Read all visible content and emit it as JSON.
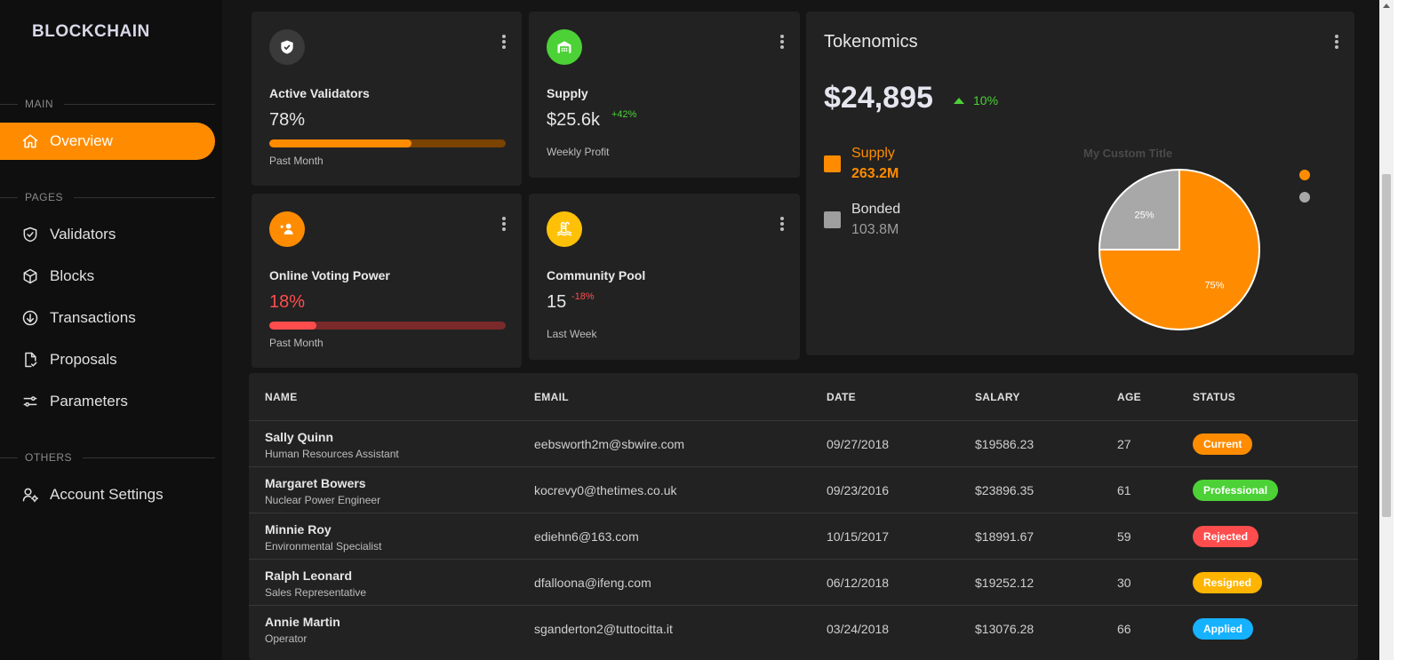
{
  "sidebar": {
    "brand": "BLOCKCHAIN",
    "sections": {
      "main": "MAIN",
      "pages": "PAGES",
      "others": "OTHERS"
    },
    "items": {
      "overview": "Overview",
      "validators": "Validators",
      "blocks": "Blocks",
      "transactions": "Transactions",
      "proposals": "Proposals",
      "parameters": "Parameters",
      "account_settings": "Account Settings"
    }
  },
  "cards": {
    "active_validators": {
      "title": "Active Validators",
      "value": "78%",
      "progress": 0.6,
      "sub": "Past Month",
      "color": "#ff8c00"
    },
    "supply": {
      "title": "Supply",
      "value": "$25.6k",
      "delta": "+42%",
      "sub": "Weekly Profit",
      "color": "#4cd137"
    },
    "online_voting_power": {
      "title": "Online Voting Power",
      "value": "18%",
      "progress": 0.2,
      "sub": "Past Month",
      "color": "#ff4d4d"
    },
    "community_pool": {
      "title": "Community Pool",
      "value": "15",
      "delta": "-18%",
      "sub": "Last Week",
      "color": "#ffc107"
    }
  },
  "tokenomics": {
    "title": "Tokenomics",
    "amount": "$24,895",
    "change": "10%",
    "legend": [
      {
        "label": "Supply",
        "value": "263.2M",
        "color": "#ff8c00"
      },
      {
        "label": "Bonded",
        "value": "103.8M",
        "color": "#9e9e9e"
      }
    ]
  },
  "chart_data": {
    "type": "pie",
    "title": "My Custom Title",
    "slices": [
      {
        "label": "75%",
        "value": 75,
        "color": "#ff8c00"
      },
      {
        "label": "25%",
        "value": 25,
        "color": "#a8a8a8"
      }
    ],
    "legend_position": "right"
  },
  "table": {
    "headers": {
      "name": "NAME",
      "email": "EMAIL",
      "date": "DATE",
      "salary": "SALARY",
      "age": "AGE",
      "status": "STATUS"
    },
    "rows": [
      {
        "name": "Sally Quinn",
        "role": "Human Resources Assistant",
        "email": "eebsworth2m@sbwire.com",
        "date": "09/27/2018",
        "salary": "$19586.23",
        "age": "27",
        "status": "Current",
        "status_color": "#ff8c00"
      },
      {
        "name": "Margaret Bowers",
        "role": "Nuclear Power Engineer",
        "email": "kocrevy0@thetimes.co.uk",
        "date": "09/23/2016",
        "salary": "$23896.35",
        "age": "61",
        "status": "Professional",
        "status_color": "#4cd137"
      },
      {
        "name": "Minnie Roy",
        "role": "Environmental Specialist",
        "email": "ediehn6@163.com",
        "date": "10/15/2017",
        "salary": "$18991.67",
        "age": "59",
        "status": "Rejected",
        "status_color": "#ff4d4d"
      },
      {
        "name": "Ralph Leonard",
        "role": "Sales Representative",
        "email": "dfalloona@ifeng.com",
        "date": "06/12/2018",
        "salary": "$19252.12",
        "age": "30",
        "status": "Resigned",
        "status_color": "#ffb400"
      },
      {
        "name": "Annie Martin",
        "role": "Operator",
        "email": "sganderton2@tuttocitta.it",
        "date": "03/24/2018",
        "salary": "$13076.28",
        "age": "66",
        "status": "Applied",
        "status_color": "#16b1ff"
      }
    ]
  }
}
